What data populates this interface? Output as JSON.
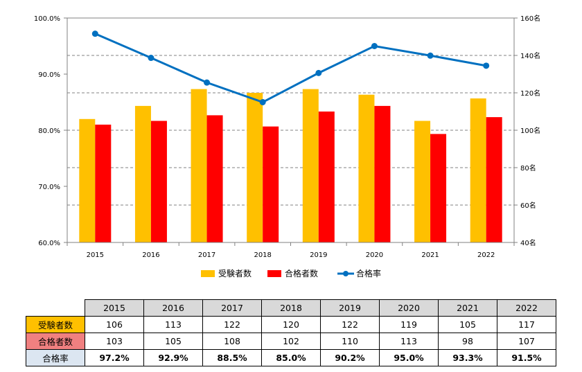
{
  "chart_data": {
    "type": "bar",
    "categories": [
      "2015",
      "2016",
      "2017",
      "2018",
      "2019",
      "2020",
      "2021",
      "2022"
    ],
    "series": [
      {
        "name": "受験者数",
        "type": "bar",
        "axis": "right",
        "color": "#ffc000",
        "values": [
          106,
          113,
          122,
          120,
          122,
          119,
          105,
          117
        ]
      },
      {
        "name": "合格者数",
        "type": "bar",
        "axis": "right",
        "color": "#ff0000",
        "values": [
          103,
          105,
          108,
          102,
          110,
          113,
          98,
          107
        ]
      },
      {
        "name": "合格率",
        "type": "line",
        "axis": "left",
        "color": "#0070c0",
        "values": [
          97.2,
          92.9,
          88.5,
          85.0,
          90.2,
          95.0,
          93.3,
          91.5
        ]
      }
    ],
    "left_axis": {
      "min": 60,
      "max": 100,
      "step": 10,
      "ticks": [
        "60.0%",
        "70.0%",
        "80.0%",
        "90.0%",
        "100.0%"
      ]
    },
    "right_axis": {
      "min": 40,
      "max": 160,
      "step": 20,
      "ticks": [
        "40名",
        "60名",
        "80名",
        "100名",
        "120名",
        "140名",
        "160名"
      ]
    },
    "grid": true,
    "legend_position": "bottom"
  },
  "table": {
    "years": [
      "2015",
      "2016",
      "2017",
      "2018",
      "2019",
      "2020",
      "2021",
      "2022"
    ],
    "rows": [
      {
        "label": "受験者数",
        "values": [
          "106",
          "113",
          "122",
          "120",
          "122",
          "119",
          "105",
          "117"
        ]
      },
      {
        "label": "合格者数",
        "values": [
          "103",
          "105",
          "108",
          "102",
          "110",
          "113",
          "98",
          "107"
        ]
      },
      {
        "label": "合格率",
        "values": [
          "97.2%",
          "92.9%",
          "88.5%",
          "85.0%",
          "90.2%",
          "95.0%",
          "93.3%",
          "91.5%"
        ]
      }
    ]
  }
}
